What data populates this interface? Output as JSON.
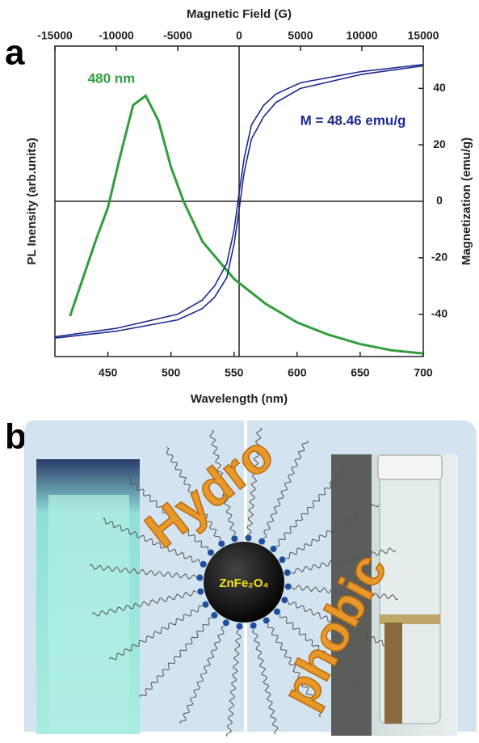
{
  "panel_labels": [
    "a",
    "b"
  ],
  "chart_data": {
    "type": "line",
    "x_label": "Wavelength (nm)",
    "x2_label": "Magnetic Field (G)",
    "y_label": "PL Inensity (arb.units)",
    "y2_label": "Magnetization (emu/g)",
    "xlim": [
      408,
      700
    ],
    "xticks": [
      450,
      500,
      550,
      600,
      650,
      700
    ],
    "x2lim": [
      -15000,
      15000
    ],
    "x2ticks": [
      -15000,
      -10000,
      -5000,
      0,
      5000,
      10000,
      15000
    ],
    "ylim": [
      0,
      1
    ],
    "y2lim": [
      -55,
      55
    ],
    "y2ticks": [
      -40,
      -20,
      0,
      20,
      40
    ],
    "series": [
      {
        "color": "#2f9e3b",
        "x": [
          420,
          440,
          450,
          460,
          470,
          480,
          490,
          500,
          510,
          525,
          550,
          575,
          600,
          625,
          650,
          675,
          700
        ],
        "values": [
          0.13,
          0.37,
          0.48,
          0.65,
          0.81,
          0.84,
          0.76,
          0.61,
          0.5,
          0.37,
          0.25,
          0.17,
          0.11,
          0.07,
          0.04,
          0.02,
          0.01
        ]
      },
      {
        "color": "#1c2a8e",
        "xaxis": "x2",
        "axis": "y2",
        "x": [
          -15000,
          -10000,
          -5000,
          -3000,
          -2000,
          -1000,
          -400,
          0,
          400,
          1000,
          2000,
          3000,
          5000,
          10000,
          15000
        ],
        "values": [
          -48,
          -45,
          -40,
          -35,
          -30,
          -22,
          -10,
          3,
          15,
          27,
          34,
          38,
          42,
          46,
          48.46
        ]
      },
      {
        "color": "#1c2a8e",
        "xaxis": "x2",
        "axis": "y2",
        "x": [
          -15000,
          -10000,
          -5000,
          -3000,
          -2000,
          -1000,
          -400,
          0,
          400,
          1000,
          2000,
          3000,
          5000,
          10000,
          15000
        ],
        "values": [
          -48.46,
          -46,
          -42,
          -38,
          -34,
          -27,
          -15,
          -3,
          10,
          22,
          30,
          35,
          40,
          45,
          48
        ]
      }
    ],
    "annotations": [
      {
        "text": "480 nm",
        "color": "#2f9e3b"
      },
      {
        "text": "M = 48.46 emu/g",
        "color": "#1c2a8e"
      }
    ]
  },
  "illustration": {
    "particle": "ZnFe₂O₄",
    "words": [
      "Hydro",
      "phobic"
    ]
  }
}
